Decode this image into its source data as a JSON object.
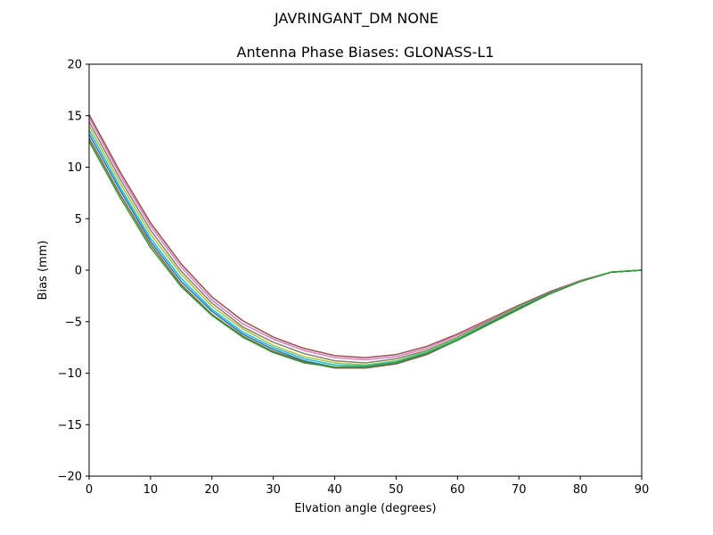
{
  "suptitle": "JAVRINGANT_DM   NONE",
  "chart_data": {
    "type": "line",
    "title": "Antenna Phase Biases: GLONASS-L1",
    "xlabel": "Elvation angle (degrees)",
    "ylabel": "Bias (mm)",
    "xlim": [
      0,
      90
    ],
    "ylim": [
      -20,
      20
    ],
    "xticks": [
      0,
      10,
      20,
      30,
      40,
      50,
      60,
      70,
      80,
      90
    ],
    "yticks": [
      -20,
      -15,
      -10,
      -5,
      0,
      5,
      10,
      15,
      20
    ],
    "xtick_labels": [
      "0",
      "10",
      "20",
      "30",
      "40",
      "50",
      "60",
      "70",
      "80",
      "90"
    ],
    "ytick_labels": [
      "−20",
      "−15",
      "−10",
      "−5",
      "0",
      "5",
      "10",
      "15",
      "20"
    ],
    "grid": false,
    "x": [
      0,
      5,
      10,
      15,
      20,
      25,
      30,
      35,
      40,
      45,
      50,
      55,
      60,
      65,
      70,
      75,
      80,
      85,
      90
    ],
    "series": [
      {
        "color": "#8c564b",
        "values": [
          15.1,
          9.6,
          4.6,
          0.6,
          -2.6,
          -4.9,
          -6.5,
          -7.6,
          -8.3,
          -8.5,
          -8.2,
          -7.4,
          -6.2,
          -4.8,
          -3.4,
          -2.1,
          -1.0,
          -0.2,
          0.0
        ]
      },
      {
        "color": "#e377c2",
        "values": [
          14.8,
          9.3,
          4.3,
          0.3,
          -2.9,
          -5.2,
          -6.7,
          -7.8,
          -8.5,
          -8.7,
          -8.4,
          -7.6,
          -6.3,
          -4.9,
          -3.5,
          -2.2,
          -1.0,
          -0.2,
          0.0
        ]
      },
      {
        "color": "#7f7f7f",
        "values": [
          14.4,
          8.9,
          3.9,
          -0.1,
          -3.2,
          -5.5,
          -7.0,
          -8.1,
          -8.8,
          -9.0,
          -8.6,
          -7.8,
          -6.5,
          -5.0,
          -3.5,
          -2.2,
          -1.1,
          -0.2,
          0.0
        ]
      },
      {
        "color": "#bcbd22",
        "values": [
          14.0,
          8.5,
          3.5,
          -0.4,
          -3.5,
          -5.7,
          -7.3,
          -8.4,
          -9.0,
          -9.2,
          -8.8,
          -7.9,
          -6.6,
          -5.1,
          -3.6,
          -2.3,
          -1.1,
          -0.2,
          0.0
        ]
      },
      {
        "color": "#17becf",
        "values": [
          13.6,
          8.1,
          3.1,
          -0.8,
          -3.8,
          -6.0,
          -7.5,
          -8.6,
          -9.2,
          -9.3,
          -8.9,
          -8.0,
          -6.7,
          -5.2,
          -3.7,
          -2.3,
          -1.1,
          -0.2,
          0.0
        ]
      },
      {
        "color": "#1f77b4",
        "values": [
          13.2,
          7.8,
          2.8,
          -1.1,
          -4.0,
          -6.2,
          -7.7,
          -8.8,
          -9.4,
          -9.4,
          -9.0,
          -8.1,
          -6.8,
          -5.2,
          -3.7,
          -2.3,
          -1.1,
          -0.2,
          0.0
        ]
      },
      {
        "color": "#8c564b",
        "values": [
          12.8,
          7.4,
          2.5,
          -1.4,
          -4.3,
          -6.4,
          -7.9,
          -8.9,
          -9.5,
          -9.5,
          -9.1,
          -8.2,
          -6.8,
          -5.3,
          -3.8,
          -2.3,
          -1.1,
          -0.2,
          0.0
        ]
      },
      {
        "color": "#2ca02c",
        "values": [
          12.5,
          7.1,
          2.2,
          -1.6,
          -4.4,
          -6.5,
          -8.0,
          -9.0,
          -9.4,
          -9.4,
          -9.0,
          -8.1,
          -6.8,
          -5.3,
          -3.8,
          -2.3,
          -1.1,
          -0.2,
          0.0
        ]
      }
    ]
  }
}
